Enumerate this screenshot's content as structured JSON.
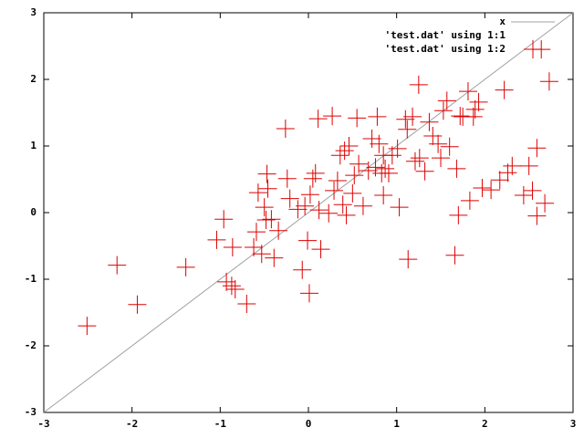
{
  "chart_data": {
    "type": "scatter",
    "xlim": [
      -3,
      3
    ],
    "ylim": [
      -3,
      3
    ],
    "xticks": [
      -3,
      -2,
      -1,
      0,
      1,
      2,
      3
    ],
    "yticks": [
      -3,
      -2,
      -1,
      0,
      1,
      2,
      3
    ],
    "legend": "top-right",
    "series": [
      {
        "name": "x",
        "color": "#a0a0a0",
        "function": "identity"
      },
      {
        "name": "'test.dat' using 1:1"
      },
      {
        "name": "'test.dat' using 1:2",
        "color": "#dd0000",
        "x": [
          -2.51,
          -2.17,
          -1.94,
          -1.39,
          -1.04,
          -0.96,
          -0.93,
          -0.87,
          -0.83,
          -0.86,
          -0.7,
          -0.62,
          -0.59,
          -0.57,
          -0.53,
          -0.5,
          -0.48,
          -0.46,
          -0.47,
          -0.42,
          -0.39,
          -0.34,
          -0.26,
          -0.24,
          -0.21,
          -0.12,
          -0.07,
          -0.04,
          -0.01,
          0.01,
          0.02,
          0.05,
          0.08,
          0.11,
          0.12,
          0.14,
          0.23,
          0.27,
          0.29,
          0.33,
          0.36,
          0.39,
          0.41,
          0.43,
          0.46,
          0.5,
          0.52,
          0.55,
          0.57,
          0.62,
          0.68,
          0.72,
          0.76,
          0.78,
          0.8,
          0.83,
          0.85,
          0.87,
          0.85,
          0.91,
          0.95,
          1.01,
          1.03,
          1.1,
          1.12,
          1.13,
          1.18,
          1.21,
          1.25,
          1.26,
          1.32,
          1.37,
          1.41,
          1.47,
          1.5,
          1.53,
          1.57,
          1.6,
          1.66,
          1.68,
          1.7,
          1.72,
          1.75,
          1.81,
          1.83,
          1.87,
          1.89,
          1.93,
          1.97,
          2.07,
          2.17,
          2.22,
          2.26,
          2.31,
          2.44,
          2.5,
          2.54,
          2.59,
          2.59,
          2.64,
          2.68,
          2.73
        ],
        "values": [
          -1.7,
          -0.79,
          -1.38,
          -0.82,
          -0.41,
          -0.1,
          -1.04,
          -1.1,
          -1.15,
          -0.52,
          -1.37,
          -0.52,
          -0.29,
          0.3,
          -0.62,
          0.08,
          -0.11,
          0.36,
          0.58,
          -0.1,
          -0.68,
          -0.27,
          1.26,
          0.51,
          0.21,
          0.05,
          -0.86,
          0.1,
          -0.42,
          -1.21,
          0.27,
          0.51,
          0.59,
          1.41,
          0.04,
          -0.55,
          -0.01,
          1.45,
          0.33,
          0.48,
          0.86,
          0.12,
          0.93,
          -0.04,
          1.0,
          0.29,
          0.56,
          1.42,
          0.73,
          0.1,
          0.63,
          1.11,
          0.68,
          1.44,
          1.03,
          0.59,
          0.86,
          0.66,
          0.26,
          0.59,
          0.86,
          0.96,
          0.08,
          1.4,
          1.25,
          -0.7,
          1.44,
          0.77,
          1.92,
          0.82,
          0.62,
          1.36,
          1.15,
          1.03,
          0.82,
          1.53,
          1.68,
          0.99,
          -0.64,
          0.66,
          -0.04,
          1.45,
          1.44,
          1.82,
          0.18,
          1.44,
          1.55,
          1.66,
          0.37,
          0.34,
          0.49,
          1.84,
          0.6,
          0.7,
          0.26,
          0.7,
          0.33,
          0.97,
          -0.05,
          2.45,
          0.14,
          1.97
        ]
      }
    ]
  }
}
